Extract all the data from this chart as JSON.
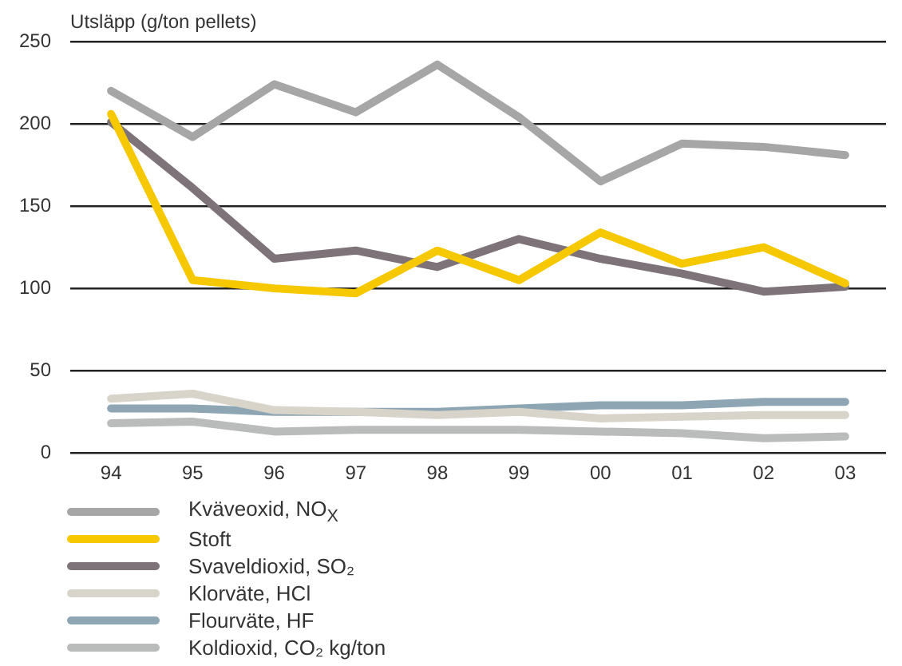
{
  "chart_data": {
    "type": "line",
    "ylabel": "Utsläpp (g/ton pellets)",
    "categories": [
      "94",
      "95",
      "96",
      "97",
      "98",
      "99",
      "00",
      "01",
      "02",
      "03"
    ],
    "series": [
      {
        "name": "Kväveoxid, NO$_{X}$",
        "color": "#a6a6a6",
        "values": [
          220,
          192,
          224,
          207,
          236,
          204,
          165,
          188,
          186,
          181
        ]
      },
      {
        "name": "Stoft",
        "color": "#f5c800",
        "values": [
          206,
          105,
          100,
          97,
          123,
          105,
          134,
          115,
          125,
          103
        ]
      },
      {
        "name": "Svaveldioxid, SO₂",
        "color": "#7d7379",
        "values": [
          201,
          161,
          118,
          123,
          113,
          130,
          118,
          109,
          98,
          101
        ]
      },
      {
        "name": "Klorväte, HCl",
        "color": "#d8d4ca",
        "values": [
          33,
          36,
          26,
          25,
          23,
          25,
          21,
          22,
          23,
          23
        ]
      },
      {
        "name": "Flourväte, HF",
        "color": "#8ea6b4",
        "values": [
          27,
          27,
          25,
          25,
          25,
          27,
          29,
          29,
          31,
          31
        ]
      },
      {
        "name": "Koldioxid, CO₂ kg/ton",
        "color": "#b9bcbb",
        "values": [
          18,
          19,
          13,
          14,
          14,
          14,
          13,
          12,
          9,
          10
        ]
      }
    ],
    "ylim": [
      0,
      250
    ],
    "yticks": [
      0,
      50,
      100,
      150,
      200,
      250
    ],
    "grid": "y",
    "legend": "bottom",
    "marker": "none",
    "line_style": "solid"
  }
}
